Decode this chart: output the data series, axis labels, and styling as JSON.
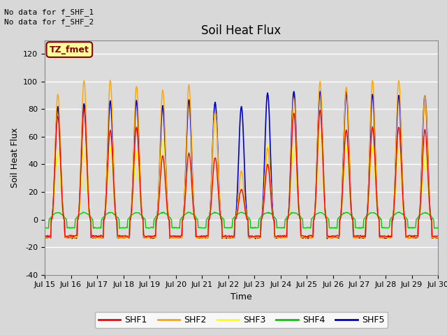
{
  "title": "Soil Heat Flux",
  "xlabel": "Time",
  "ylabel": "Soil Heat Flux",
  "ylim": [
    -40,
    130
  ],
  "yticks": [
    -40,
    -20,
    0,
    20,
    40,
    60,
    80,
    100,
    120
  ],
  "xtick_labels": [
    "Jul 15",
    "Jul 16",
    "Jul 17",
    "Jul 18",
    "Jul 19",
    "Jul 20",
    "Jul 21",
    "Jul 22",
    "Jul 23",
    "Jul 24",
    "Jul 25",
    "Jul 26",
    "Jul 27",
    "Jul 28",
    "Jul 29",
    "Jul 30"
  ],
  "series_colors": {
    "SHF1": "#ff0000",
    "SHF2": "#ffa500",
    "SHF3": "#ffff00",
    "SHF4": "#00cc00",
    "SHF5": "#0000cd"
  },
  "series_order": [
    "SHF5",
    "SHF3",
    "SHF4",
    "SHF2",
    "SHF1"
  ],
  "legend_order": [
    "SHF1",
    "SHF2",
    "SHF3",
    "SHF4",
    "SHF5"
  ],
  "no_data_text": [
    "No data for f_SHF_1",
    "No data for f_SHF_2"
  ],
  "box_label": "TZ_fmet",
  "box_color": "#ffff99",
  "box_border_color": "#880000",
  "background_color": "#dcdcdc",
  "title_fontsize": 12,
  "axis_label_fontsize": 9,
  "tick_fontsize": 8,
  "legend_fontsize": 9,
  "day_peaks_SHF1": [
    75,
    80,
    65,
    67,
    46,
    48,
    45,
    22,
    40,
    77,
    79,
    65,
    67,
    67,
    65
  ],
  "day_peaks_SHF2": [
    91,
    101,
    101,
    97,
    94,
    98,
    78,
    35,
    52,
    88,
    100,
    96,
    101,
    101,
    90
  ],
  "day_peaks_SHF3": [
    50,
    53,
    53,
    49,
    57,
    48,
    78,
    35,
    55,
    54,
    62,
    54,
    54,
    51,
    47
  ],
  "day_peaks_SHF4": [
    0,
    0,
    0,
    0,
    0,
    0,
    0,
    0,
    0,
    0,
    0,
    0,
    0,
    0,
    0
  ],
  "day_peaks_SHF5": [
    82,
    84,
    86,
    86,
    82,
    87,
    85,
    82,
    92,
    93,
    93,
    92,
    91,
    90,
    90
  ],
  "night_val_SHF1": -12,
  "night_val_SHF2": -13,
  "night_val_SHF3": -12,
  "night_val_SHF4": -6,
  "night_val_SHF5": -13
}
